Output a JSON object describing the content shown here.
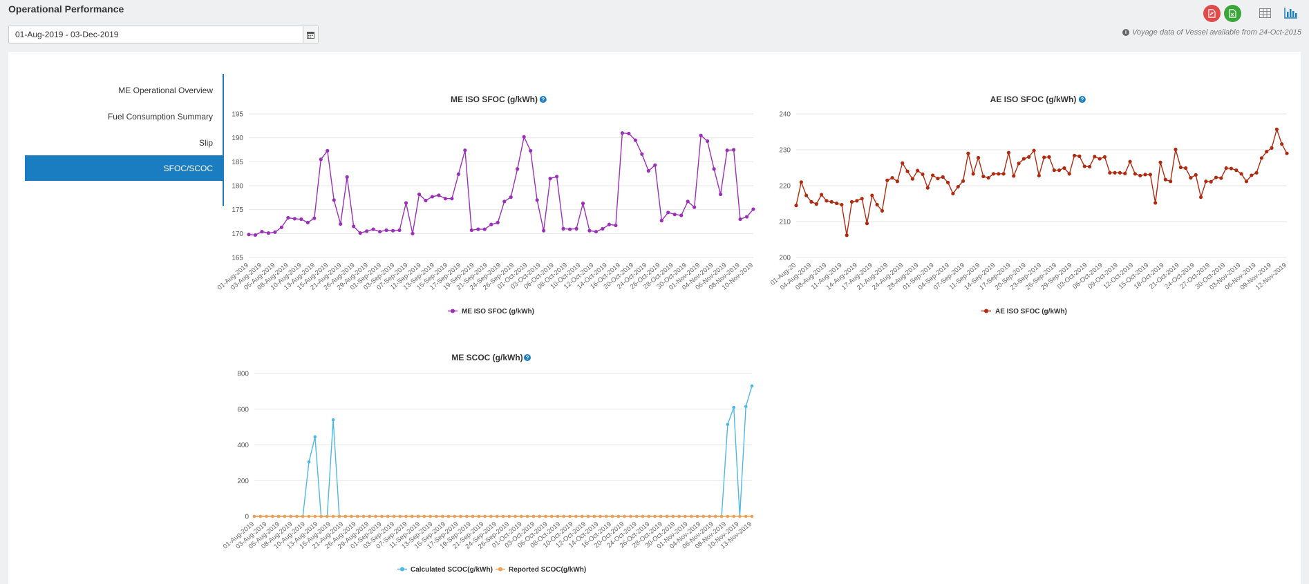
{
  "page": {
    "title": "Operational Performance"
  },
  "date_filter": {
    "value": "01-Aug-2019 - 03-Dec-2019"
  },
  "toolbar": {
    "pdf_color": "#e04b4b",
    "excel_color": "#3aa63a",
    "icons": [
      "pdf-export-icon",
      "excel-export-icon",
      "table-view-icon",
      "chart-view-icon"
    ]
  },
  "info_note": "Voyage data of Vessel available from 24-Oct-2015",
  "sidebar": {
    "items": [
      {
        "label": "ME Operational Overview",
        "active": false
      },
      {
        "label": "Fuel Consumption Summary",
        "active": false
      },
      {
        "label": "Slip",
        "active": false
      },
      {
        "label": "SFOC/SCOC",
        "active": true
      }
    ]
  },
  "chart_data": [
    {
      "type": "line",
      "title": "ME ISO SFOC (g/kWh)",
      "ylim": [
        165,
        195
      ],
      "yticks": [
        165,
        170,
        175,
        180,
        185,
        190,
        195
      ],
      "x_labels": [
        "01-Aug-2019",
        "03-Aug-2019",
        "05-Aug-2019",
        "08-Aug-2019",
        "10-Aug-2019",
        "13-Aug-2019",
        "15-Aug-2019",
        "21-Aug-2019",
        "26-Aug-2019",
        "29-Aug-2019",
        "01-Sep-2019",
        "03-Sep-2019",
        "07-Sep-2019",
        "11-Sep-2019",
        "13-Sep-2019",
        "15-Sep-2019",
        "17-Sep-2019",
        "19-Sep-2019",
        "21-Sep-2019",
        "24-Sep-2019",
        "26-Sep-2019",
        "01-Oct-2019",
        "03-Oct-2019",
        "06-Oct-2019",
        "08-Oct-2019",
        "10-Oct-2019",
        "12-Oct-2019",
        "14-Oct-2019",
        "16-Oct-2019",
        "20-Oct-2019",
        "24-Oct-2019",
        "26-Oct-2019",
        "28-Oct-2019",
        "30-Oct-2019",
        "01-Nov-2019",
        "04-Nov-2019",
        "06-Nov-2019",
        "08-Nov-2019",
        "10-Nov-2019"
      ],
      "color": "#9b30b8",
      "series": [
        {
          "name": "ME ISO SFOC (g/kWh)",
          "values": [
            169.8,
            169.7,
            170.4,
            170.1,
            170.3,
            171.3,
            173.3,
            173.1,
            173.0,
            172.3,
            173.2,
            185.5,
            187.3,
            177.0,
            172.0,
            181.8,
            171.5,
            170.1,
            170.5,
            170.9,
            170.4,
            170.7,
            170.6,
            170.7,
            176.4,
            170.0,
            178.2,
            176.9,
            177.7,
            178.0,
            177.3,
            177.3,
            182.4,
            187.4,
            170.7,
            170.9,
            170.9,
            171.9,
            172.3,
            176.7,
            177.6,
            183.5,
            190.2,
            187.3,
            177.0,
            170.6,
            181.5,
            181.9,
            171.0,
            170.9,
            171.0,
            176.3,
            170.6,
            170.4,
            171.0,
            171.9,
            171.7,
            191.0,
            190.9,
            189.5,
            186.6,
            183.1,
            184.3,
            172.7,
            174.4,
            174.0,
            173.8,
            176.7,
            175.5,
            190.5,
            189.3,
            183.5,
            178.2,
            187.4,
            187.5,
            173.0,
            173.5,
            175.1
          ]
        }
      ]
    },
    {
      "type": "line",
      "title": "AE ISO SFOC (g/kWh)",
      "ylim": [
        200,
        240
      ],
      "yticks": [
        200,
        210,
        220,
        230,
        240
      ],
      "x_labels": [
        "01-Aug-20",
        "04-Aug-2019",
        "08-Aug-2019",
        "11-Aug-2019",
        "14-Aug-2019",
        "17-Aug-2019",
        "21-Aug-2019",
        "24-Aug-2019",
        "28-Aug-2019",
        "01-Sep-2019",
        "04-Sep-2019",
        "07-Sep-2019",
        "11-Sep-2019",
        "14-Sep-2019",
        "17-Sep-2019",
        "20-Sep-2019",
        "23-Sep-2019",
        "26-Sep-2019",
        "29-Sep-2019",
        "03-Oct-2019",
        "06-Oct-2019",
        "09-Oct-2019",
        "12-Oct-2019",
        "15-Oct-2019",
        "18-Oct-2019",
        "21-Oct-2019",
        "24-Oct-2019",
        "27-Oct-2019",
        "30-Oct-2019",
        "03-Nov-2019",
        "06-Nov-2019",
        "09-Nov-2019",
        "12-Nov-2019"
      ],
      "color": "#b02a10",
      "series": [
        {
          "name": "AE ISO SFOC (g/kWh)",
          "values": [
            214.5,
            221.0,
            217.3,
            215.5,
            214.9,
            217.5,
            215.8,
            215.5,
            215.1,
            214.7,
            206.2,
            215.5,
            215.8,
            216.4,
            209.5,
            217.3,
            214.7,
            213.0,
            221.5,
            222.2,
            221.2,
            226.3,
            224.0,
            221.9,
            224.2,
            223.2,
            219.4,
            222.9,
            222.0,
            222.4,
            220.9,
            217.8,
            219.7,
            221.3,
            229.0,
            223.3,
            227.8,
            222.6,
            222.2,
            223.3,
            223.3,
            223.3,
            229.2,
            222.7,
            226.2,
            227.5,
            228.0,
            229.8,
            222.8,
            227.9,
            228.0,
            224.3,
            224.3,
            224.9,
            223.3,
            228.4,
            228.2,
            225.4,
            225.3,
            228.1,
            227.5,
            228.0,
            223.6,
            223.6,
            223.6,
            223.4,
            226.7,
            223.3,
            222.8,
            223.1,
            223.1,
            215.2,
            226.5,
            221.7,
            221.2,
            230.1,
            225.1,
            224.9,
            222.2,
            223.0,
            216.8,
            221.2,
            221.1,
            222.3,
            222.1,
            224.9,
            224.8,
            224.3,
            223.3,
            221.2,
            222.9,
            223.6,
            227.7,
            229.5,
            230.5,
            235.7,
            231.6,
            229.0
          ]
        }
      ]
    },
    {
      "type": "line",
      "title": "ME SCOC (g/kWh)",
      "ylim": [
        0,
        800
      ],
      "yticks": [
        0,
        200,
        400,
        600,
        800
      ],
      "x_labels": [
        "01-Aug-2019",
        "03-Aug-2019",
        "05-Aug-2019",
        "08-Aug-2019",
        "10-Aug-2019",
        "13-Aug-2019",
        "15-Aug-2019",
        "21-Aug-2019",
        "26-Aug-2019",
        "29-Aug-2019",
        "01-Sep-2019",
        "03-Sep-2019",
        "07-Sep-2019",
        "11-Sep-2019",
        "13-Sep-2019",
        "15-Sep-2019",
        "17-Sep-2019",
        "19-Sep-2019",
        "21-Sep-2019",
        "24-Sep-2019",
        "26-Sep-2019",
        "01-Oct-2019",
        "03-Oct-2019",
        "06-Oct-2019",
        "08-Oct-2019",
        "10-Oct-2019",
        "12-Oct-2019",
        "14-Oct-2019",
        "16-Oct-2019",
        "20-Oct-2019",
        "24-Oct-2019",
        "26-Oct-2019",
        "28-Oct-2019",
        "30-Oct-2019",
        "01-Nov-2019",
        "04-Nov-2019",
        "06-Nov-2019",
        "08-Nov-2019",
        "10-Nov-2019",
        "13-Nov-2019"
      ],
      "series": [
        {
          "name": "Calculated SCOC(g/kWh)",
          "color": "#4db8e8",
          "values": [
            0,
            0,
            0,
            0,
            0,
            0,
            0,
            0,
            0,
            305,
            445,
            0,
            0,
            540,
            0,
            0,
            0,
            0,
            0,
            0,
            0,
            0,
            0,
            0,
            0,
            0,
            0,
            0,
            0,
            0,
            0,
            0,
            0,
            0,
            0,
            0,
            0,
            0,
            0,
            0,
            0,
            0,
            0,
            0,
            0,
            0,
            0,
            0,
            0,
            0,
            0,
            0,
            0,
            0,
            0,
            0,
            0,
            0,
            0,
            0,
            0,
            0,
            0,
            0,
            0,
            0,
            0,
            0,
            0,
            0,
            0,
            0,
            0,
            0,
            0,
            0,
            0,
            0,
            515,
            610,
            0,
            615,
            730
          ]
        },
        {
          "name": "Reported SCOC(g/kWh)",
          "color": "#f0a050",
          "values": [
            0,
            0,
            0,
            0,
            0,
            0,
            0,
            0,
            0,
            0,
            0,
            0,
            0,
            0,
            0,
            0,
            0,
            0,
            0,
            0,
            0,
            0,
            0,
            0,
            0,
            0,
            0,
            0,
            0,
            0,
            0,
            0,
            0,
            0,
            0,
            0,
            0,
            0,
            0,
            0,
            0,
            0,
            0,
            0,
            0,
            0,
            0,
            0,
            0,
            0,
            0,
            0,
            0,
            0,
            0,
            0,
            0,
            0,
            0,
            0,
            0,
            0,
            0,
            0,
            0,
            0,
            0,
            0,
            0,
            0,
            0,
            0,
            0,
            0,
            0,
            0,
            0,
            0,
            0,
            0,
            0,
            0,
            0
          ]
        }
      ]
    }
  ]
}
